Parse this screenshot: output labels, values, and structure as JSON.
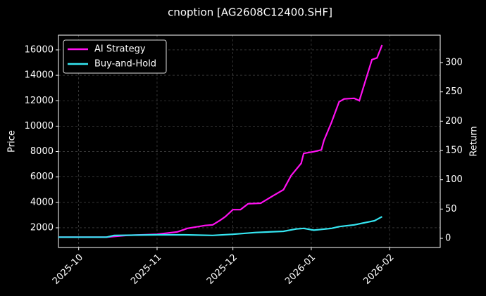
{
  "chart_data": {
    "type": "line",
    "title": "cnoption [AG2608C12400.SHF]",
    "y_label": "Price",
    "y2_label": "Return",
    "xlim": [
      -8,
      143
    ],
    "xticks": [
      {
        "value": 0,
        "label": "2025-10"
      },
      {
        "value": 31,
        "label": "2025-11"
      },
      {
        "value": 61,
        "label": "2025-12"
      },
      {
        "value": 92,
        "label": "2026-01"
      },
      {
        "value": 123,
        "label": "2026-02"
      }
    ],
    "ylim": [
      450,
      17160
    ],
    "yticks": [
      2000,
      4000,
      6000,
      8000,
      10000,
      12000,
      14000,
      16000
    ],
    "y2lim": [
      -15.6,
      346.8
    ],
    "y2ticks": [
      0,
      50,
      100,
      150,
      200,
      250,
      300
    ],
    "grid": true,
    "legend": "upper left",
    "series": [
      {
        "name": "AI Strategy",
        "color": "#ff10f0",
        "axis": "y2",
        "x": [
          -8,
          11,
          19,
          31,
          39,
          43,
          50,
          53,
          56,
          58,
          61,
          64,
          67,
          72,
          77,
          81,
          84,
          88,
          89,
          93,
          96,
          97,
          100,
          103,
          105,
          109,
          111,
          113,
          116,
          118,
          120
        ],
        "values": [
          2,
          2,
          5,
          7,
          11,
          17,
          22,
          23,
          31,
          37,
          49,
          49,
          59,
          60,
          73,
          83,
          107,
          128,
          145,
          148,
          151,
          167,
          198,
          233,
          238,
          239,
          235,
          263,
          305,
          308,
          330
        ]
      },
      {
        "name": "Buy-and-Hold",
        "color": "#35e6f2",
        "axis": "y2",
        "x": [
          -8,
          11,
          14,
          31,
          42,
          53,
          61,
          70,
          81,
          86,
          89,
          93,
          100,
          103,
          109,
          117,
          120
        ],
        "values": [
          2,
          2,
          5,
          6,
          6,
          5,
          7,
          10,
          12,
          16,
          17,
          14,
          17,
          20,
          23,
          30,
          37
        ]
      }
    ]
  }
}
